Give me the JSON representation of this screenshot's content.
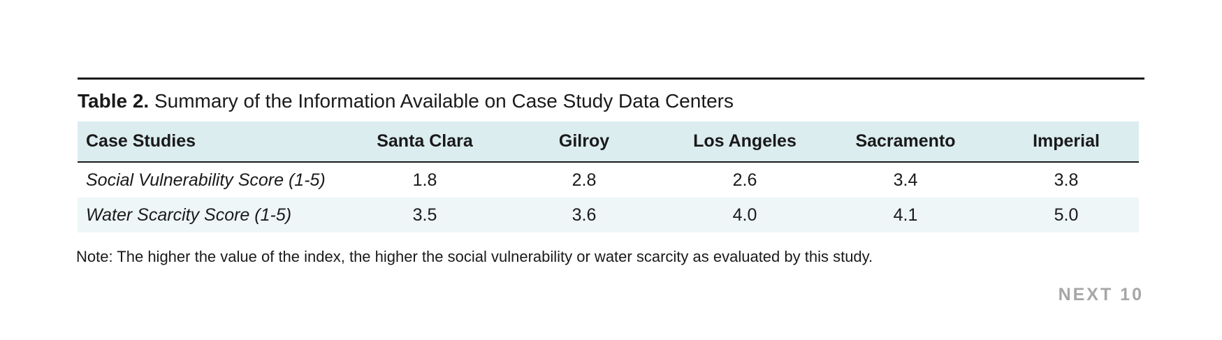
{
  "caption": {
    "label": "Table 2.",
    "title": "Summary of the Information Available on Case Study Data Centers"
  },
  "table": {
    "headers": [
      "Case Studies",
      "Santa Clara",
      "Gilroy",
      "Los Angeles",
      "Sacramento",
      "Imperial"
    ],
    "rows": [
      {
        "label": "Social Vulnerability Score (1-5)",
        "values": [
          "1.8",
          "2.8",
          "2.6",
          "3.4",
          "3.8"
        ]
      },
      {
        "label": "Water Scarcity Score (1-5)",
        "values": [
          "3.5",
          "3.6",
          "4.0",
          "4.1",
          "5.0"
        ]
      }
    ]
  },
  "note": "Note: The higher the value of the index, the higher the social vulnerability or water scarcity as evaluated by this study.",
  "brand": "NEXT 10",
  "colors": {
    "header_background": "#dcedf0",
    "shaded_row_background": "#eef6f7",
    "brand_gray": "#a6a6a6"
  }
}
